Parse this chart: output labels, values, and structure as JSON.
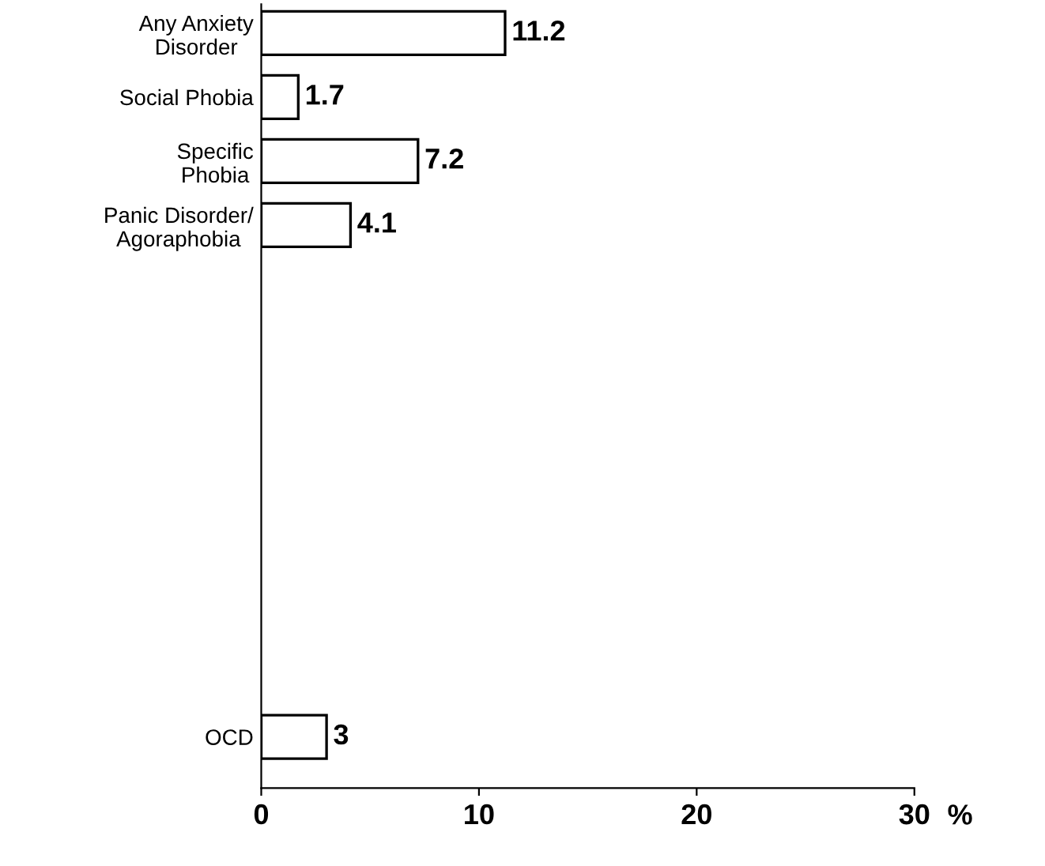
{
  "chart_data": {
    "type": "bar",
    "orientation": "horizontal",
    "xlabel": "%",
    "categories": [
      "Any Anxiety\nDisorder",
      "Social Phobia",
      "Specific\nPhobia",
      "Panic Disorder/\nAgoraphobia",
      null,
      null,
      null,
      null,
      null,
      null,
      null,
      "OCD"
    ],
    "values": [
      11.2,
      1.7,
      7.2,
      4.1,
      null,
      null,
      null,
      null,
      null,
      null,
      null,
      3
    ],
    "color": "#ffffff",
    "data_labels": true,
    "grid": false,
    "legend": false,
    "xlim": [
      0,
      30
    ],
    "xticks": [
      0,
      10,
      20,
      30
    ]
  }
}
